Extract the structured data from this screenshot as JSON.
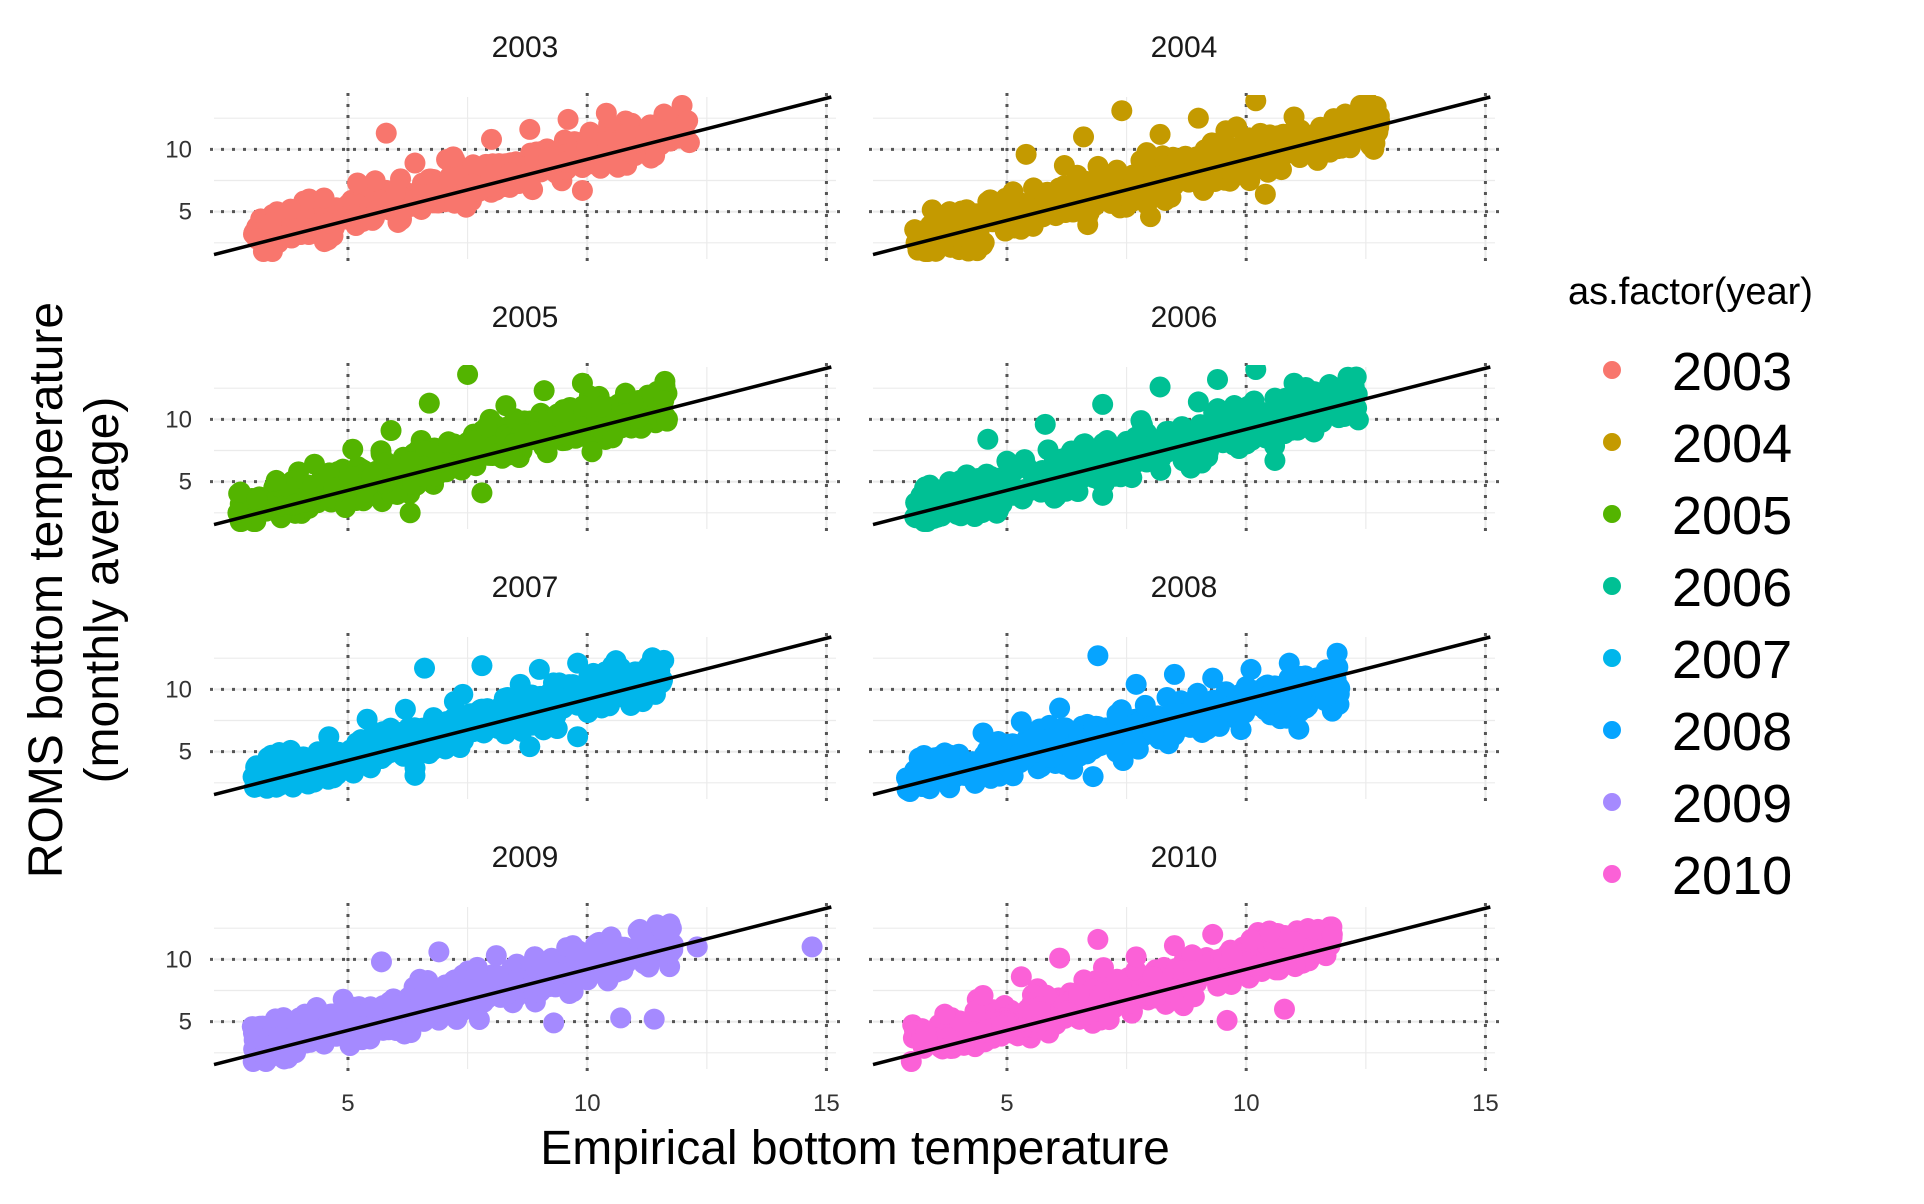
{
  "chart_data": {
    "type": "scatter",
    "xlabel": "Empirical bottom temperature",
    "ylabel_lines": [
      "ROMS bottom temperature",
      "(monthly average)"
    ],
    "xlim": [
      2.2,
      15.2
    ],
    "ylim": [
      1.2,
      14.2
    ],
    "x_ticks": [
      5,
      10,
      15
    ],
    "y_ticks": [
      5,
      10
    ],
    "grid": true,
    "reference_lines": {
      "dotted_x": [
        5,
        10,
        15
      ],
      "dotted_y": [
        5,
        10
      ]
    },
    "legend": {
      "title": "as.factor(year)",
      "position": "right"
    },
    "panels": [
      {
        "label": "2003",
        "color": "#F8766D",
        "fit": {
          "intercept": -0.6,
          "slope": 0.98
        },
        "cloud": {
          "x_min": 3.0,
          "x_max": 12.2,
          "y_at_min": 3.2,
          "y_at_max": 11.8,
          "spread": 1.6
        },
        "points": [
          [
            3.1,
            2.8
          ],
          [
            3.4,
            4.1
          ],
          [
            3.8,
            5.2
          ],
          [
            4.2,
            3.6
          ],
          [
            4.5,
            6.1
          ],
          [
            4.9,
            4.4
          ],
          [
            5.2,
            7.3
          ],
          [
            5.6,
            5.1
          ],
          [
            6.0,
            6.8
          ],
          [
            6.4,
            8.9
          ],
          [
            6.8,
            5.7
          ],
          [
            7.2,
            9.4
          ],
          [
            7.6,
            7.2
          ],
          [
            8.0,
            10.8
          ],
          [
            8.4,
            8.1
          ],
          [
            8.8,
            11.6
          ],
          [
            9.2,
            9.3
          ],
          [
            9.6,
            12.4
          ],
          [
            10.0,
            10.1
          ],
          [
            10.4,
            12.9
          ],
          [
            10.8,
            11.2
          ],
          [
            11.4,
            11.8
          ],
          [
            12.1,
            12.3
          ],
          [
            9.9,
            6.7
          ],
          [
            5.8,
            11.3
          ]
        ]
      },
      {
        "label": "2004",
        "color": "#C49A00",
        "fit": {
          "intercept": -0.6,
          "slope": 0.98
        },
        "cloud": {
          "x_min": 3.0,
          "x_max": 12.8,
          "y_at_min": 2.8,
          "y_at_max": 12.0,
          "spread": 1.8
        },
        "points": [
          [
            3.1,
            2.5
          ],
          [
            3.4,
            3.9
          ],
          [
            3.8,
            5.0
          ],
          [
            4.2,
            3.2
          ],
          [
            4.6,
            5.8
          ],
          [
            5.0,
            4.1
          ],
          [
            5.4,
            9.6
          ],
          [
            5.8,
            6.2
          ],
          [
            6.2,
            8.7
          ],
          [
            6.6,
            11.0
          ],
          [
            7.0,
            7.4
          ],
          [
            7.4,
            13.1
          ],
          [
            7.8,
            9.1
          ],
          [
            8.2,
            11.2
          ],
          [
            8.6,
            7.9
          ],
          [
            9.0,
            12.5
          ],
          [
            9.4,
            10.4
          ],
          [
            9.8,
            11.8
          ],
          [
            10.2,
            13.9
          ],
          [
            10.6,
            10.9
          ],
          [
            11.0,
            12.6
          ],
          [
            11.6,
            11.4
          ],
          [
            12.6,
            12.0
          ],
          [
            10.4,
            6.4
          ],
          [
            8.0,
            4.6
          ]
        ]
      },
      {
        "label": "2005",
        "color": "#53B400",
        "fit": {
          "intercept": -0.6,
          "slope": 0.98
        },
        "cloud": {
          "x_min": 2.7,
          "x_max": 11.7,
          "y_at_min": 2.6,
          "y_at_max": 11.4,
          "spread": 1.7
        },
        "points": [
          [
            2.7,
            2.5
          ],
          [
            3.1,
            3.6
          ],
          [
            3.5,
            5.1
          ],
          [
            3.9,
            3.2
          ],
          [
            4.3,
            6.4
          ],
          [
            4.7,
            4.5
          ],
          [
            5.1,
            7.6
          ],
          [
            5.5,
            5.4
          ],
          [
            5.9,
            9.1
          ],
          [
            6.3,
            6.6
          ],
          [
            6.7,
            11.3
          ],
          [
            7.1,
            8.2
          ],
          [
            7.5,
            13.6
          ],
          [
            7.9,
            9.4
          ],
          [
            8.3,
            11.1
          ],
          [
            8.7,
            8.8
          ],
          [
            9.1,
            12.3
          ],
          [
            9.5,
            10.6
          ],
          [
            9.9,
            12.9
          ],
          [
            10.3,
            11.0
          ],
          [
            10.8,
            12.1
          ],
          [
            11.6,
            11.5
          ],
          [
            7.8,
            4.1
          ],
          [
            6.3,
            2.5
          ],
          [
            10.1,
            7.4
          ]
        ]
      },
      {
        "label": "2006",
        "color": "#00C094",
        "fit": {
          "intercept": -0.6,
          "slope": 0.98
        },
        "cloud": {
          "x_min": 3.0,
          "x_max": 12.4,
          "y_at_min": 2.6,
          "y_at_max": 12.0,
          "spread": 1.8
        },
        "points": [
          [
            3.1,
            2.1
          ],
          [
            3.4,
            3.4
          ],
          [
            3.8,
            5.0
          ],
          [
            4.2,
            3.0
          ],
          [
            4.6,
            8.4
          ],
          [
            5.0,
            4.6
          ],
          [
            5.4,
            6.3
          ],
          [
            5.8,
            9.6
          ],
          [
            6.2,
            5.2
          ],
          [
            6.6,
            8.0
          ],
          [
            7.0,
            11.2
          ],
          [
            7.4,
            6.8
          ],
          [
            7.8,
            9.9
          ],
          [
            8.2,
            12.6
          ],
          [
            8.6,
            8.6
          ],
          [
            9.0,
            11.4
          ],
          [
            9.4,
            13.2
          ],
          [
            9.8,
            10.1
          ],
          [
            10.2,
            14.0
          ],
          [
            10.6,
            11.7
          ],
          [
            11.0,
            12.9
          ],
          [
            11.6,
            11.6
          ],
          [
            12.3,
            13.4
          ],
          [
            10.6,
            6.7
          ],
          [
            7.0,
            3.9
          ]
        ]
      },
      {
        "label": "2007",
        "color": "#00B6EB",
        "fit": {
          "intercept": -0.6,
          "slope": 0.98
        },
        "cloud": {
          "x_min": 3.0,
          "x_max": 11.6,
          "y_at_min": 2.6,
          "y_at_max": 11.2,
          "spread": 1.6
        },
        "points": [
          [
            3.1,
            2.2
          ],
          [
            3.4,
            3.6
          ],
          [
            3.8,
            5.1
          ],
          [
            4.2,
            3.3
          ],
          [
            4.6,
            6.2
          ],
          [
            5.0,
            4.5
          ],
          [
            5.4,
            7.6
          ],
          [
            5.8,
            5.3
          ],
          [
            6.2,
            8.4
          ],
          [
            6.6,
            11.7
          ],
          [
            7.0,
            6.5
          ],
          [
            7.4,
            9.6
          ],
          [
            7.8,
            11.9
          ],
          [
            8.2,
            8.3
          ],
          [
            8.6,
            10.4
          ],
          [
            9.0,
            11.6
          ],
          [
            9.4,
            9.3
          ],
          [
            9.8,
            12.1
          ],
          [
            10.2,
            10.8
          ],
          [
            10.6,
            12.3
          ],
          [
            11.0,
            11.4
          ],
          [
            11.5,
            11.0
          ],
          [
            8.8,
            5.4
          ],
          [
            6.4,
            3.1
          ],
          [
            9.8,
            6.2
          ]
        ]
      },
      {
        "label": "2008",
        "color": "#06A4FF",
        "fit": {
          "intercept": -0.6,
          "slope": 0.98
        },
        "cloud": {
          "x_min": 2.9,
          "x_max": 12.0,
          "y_at_min": 2.8,
          "y_at_max": 10.4,
          "spread": 1.7
        },
        "points": [
          [
            2.9,
            2.9
          ],
          [
            3.3,
            3.8
          ],
          [
            3.7,
            4.9
          ],
          [
            4.1,
            3.1
          ],
          [
            4.5,
            6.5
          ],
          [
            4.9,
            4.4
          ],
          [
            5.3,
            7.4
          ],
          [
            5.7,
            5.6
          ],
          [
            6.1,
            8.5
          ],
          [
            6.5,
            6.1
          ],
          [
            6.9,
            12.7
          ],
          [
            7.3,
            8.0
          ],
          [
            7.7,
            10.4
          ],
          [
            8.1,
            7.1
          ],
          [
            8.5,
            11.2
          ],
          [
            8.9,
            8.8
          ],
          [
            9.3,
            10.9
          ],
          [
            9.7,
            8.2
          ],
          [
            10.1,
            11.6
          ],
          [
            10.5,
            9.6
          ],
          [
            10.9,
            12.1
          ],
          [
            11.4,
            10.7
          ],
          [
            11.9,
            12.9
          ],
          [
            11.1,
            6.8
          ],
          [
            6.8,
            3.0
          ]
        ]
      },
      {
        "label": "2009",
        "color": "#A58AFF",
        "fit": {
          "intercept": -0.6,
          "slope": 0.98
        },
        "cloud": {
          "x_min": 3.0,
          "x_max": 11.8,
          "y_at_min": 3.0,
          "y_at_max": 11.2,
          "spread": 1.7
        },
        "points": [
          [
            3.0,
            4.6
          ],
          [
            3.3,
            2.3
          ],
          [
            3.7,
            3.6
          ],
          [
            4.1,
            5.6
          ],
          [
            4.5,
            3.2
          ],
          [
            4.9,
            6.8
          ],
          [
            5.3,
            4.6
          ],
          [
            5.7,
            9.8
          ],
          [
            6.1,
            6.3
          ],
          [
            6.5,
            8.4
          ],
          [
            6.9,
            10.6
          ],
          [
            7.3,
            7.3
          ],
          [
            7.7,
            9.1
          ],
          [
            8.1,
            10.3
          ],
          [
            8.5,
            7.9
          ],
          [
            8.9,
            10.2
          ],
          [
            9.3,
            9.0
          ],
          [
            9.7,
            11.1
          ],
          [
            10.1,
            10.4
          ],
          [
            10.5,
            11.8
          ],
          [
            11.1,
            12.4
          ],
          [
            11.8,
            11.2
          ],
          [
            12.3,
            11.0
          ],
          [
            14.7,
            11.0
          ],
          [
            10.7,
            5.3
          ],
          [
            11.4,
            5.2
          ],
          [
            9.3,
            4.9
          ]
        ]
      },
      {
        "label": "2010",
        "color": "#FB61D7",
        "fit": {
          "intercept": -0.6,
          "slope": 0.98
        },
        "cloud": {
          "x_min": 3.0,
          "x_max": 11.8,
          "y_at_min": 3.2,
          "y_at_max": 11.6,
          "spread": 1.7
        },
        "points": [
          [
            3.0,
            1.8
          ],
          [
            3.3,
            4.2
          ],
          [
            3.7,
            5.6
          ],
          [
            4.1,
            3.1
          ],
          [
            4.5,
            7.1
          ],
          [
            4.9,
            4.7
          ],
          [
            5.3,
            8.6
          ],
          [
            5.7,
            5.8
          ],
          [
            6.1,
            10.1
          ],
          [
            6.5,
            7.2
          ],
          [
            6.9,
            11.6
          ],
          [
            7.3,
            8.4
          ],
          [
            7.7,
            10.2
          ],
          [
            8.1,
            6.9
          ],
          [
            8.5,
            11.1
          ],
          [
            8.9,
            9.1
          ],
          [
            9.3,
            12.0
          ],
          [
            9.7,
            10.4
          ],
          [
            10.1,
            11.6
          ],
          [
            10.5,
            12.2
          ],
          [
            11.0,
            11.4
          ],
          [
            11.5,
            12.4
          ],
          [
            11.8,
            12.0
          ],
          [
            10.8,
            6.0
          ],
          [
            9.6,
            5.1
          ]
        ]
      }
    ]
  }
}
